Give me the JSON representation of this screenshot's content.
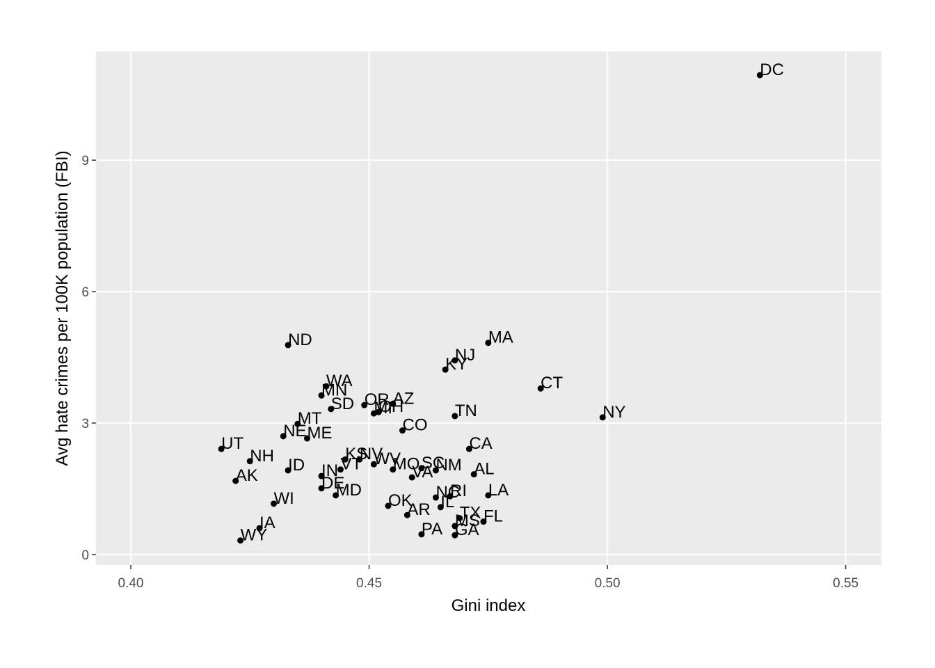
{
  "chart_data": {
    "type": "scatter",
    "x_label": "Gini index",
    "y_label": "Avg hate crimes per 100K population (FBI)",
    "labels": [
      "DC",
      "NY",
      "CT",
      "MA",
      "NJ",
      "KY",
      "TN",
      "CA",
      "AL",
      "LA",
      "FL",
      "TX",
      "MS",
      "GA",
      "PA",
      "AR",
      "NC",
      "RI",
      "IL",
      "OK",
      "NM",
      "SC",
      "VA",
      "MO",
      "CO",
      "WV",
      "NV",
      "KS",
      "VT",
      "IN",
      "DE",
      "MD",
      "OR",
      "AZ",
      "MI",
      "OH",
      "SD",
      "WA",
      "MN",
      "ND",
      "MT",
      "NE",
      "ME",
      "UT",
      "NH",
      "ID",
      "AK",
      "WI",
      "IA",
      "WY"
    ],
    "x": [
      0.532,
      0.499,
      0.486,
      0.475,
      0.468,
      0.466,
      0.468,
      0.471,
      0.472,
      0.475,
      0.474,
      0.469,
      0.468,
      0.468,
      0.461,
      0.458,
      0.464,
      0.467,
      0.465,
      0.454,
      0.464,
      0.461,
      0.459,
      0.455,
      0.457,
      0.451,
      0.448,
      0.445,
      0.444,
      0.44,
      0.44,
      0.443,
      0.449,
      0.455,
      0.451,
      0.452,
      0.442,
      0.441,
      0.44,
      0.433,
      0.435,
      0.432,
      0.437,
      0.419,
      0.425,
      0.433,
      0.422,
      0.43,
      0.427,
      0.423
    ],
    "values": [
      10.94,
      3.13,
      3.79,
      4.83,
      4.43,
      4.22,
      3.16,
      2.41,
      1.83,
      1.35,
      0.75,
      0.83,
      0.65,
      0.44,
      0.46,
      0.9,
      1.3,
      1.33,
      1.08,
      1.11,
      1.92,
      1.97,
      1.76,
      1.94,
      2.83,
      2.06,
      2.17,
      2.17,
      1.94,
      1.79,
      1.51,
      1.35,
      3.41,
      3.44,
      3.22,
      3.25,
      3.32,
      3.84,
      3.63,
      4.78,
      2.98,
      2.7,
      2.65,
      2.41,
      2.13,
      1.92,
      1.68,
      1.16,
      0.6,
      0.32
    ],
    "color": "#000000",
    "xlim": [
      0.3927,
      0.5575
    ],
    "ylim": [
      -0.24,
      11.48
    ],
    "xticks": [
      {
        "value": 0.4,
        "label": "0.40"
      },
      0.45,
      {
        "value": 0.5,
        "label": "0.50"
      },
      0.55
    ],
    "yticks": [
      0,
      3,
      6,
      9
    ],
    "grid": true
  }
}
